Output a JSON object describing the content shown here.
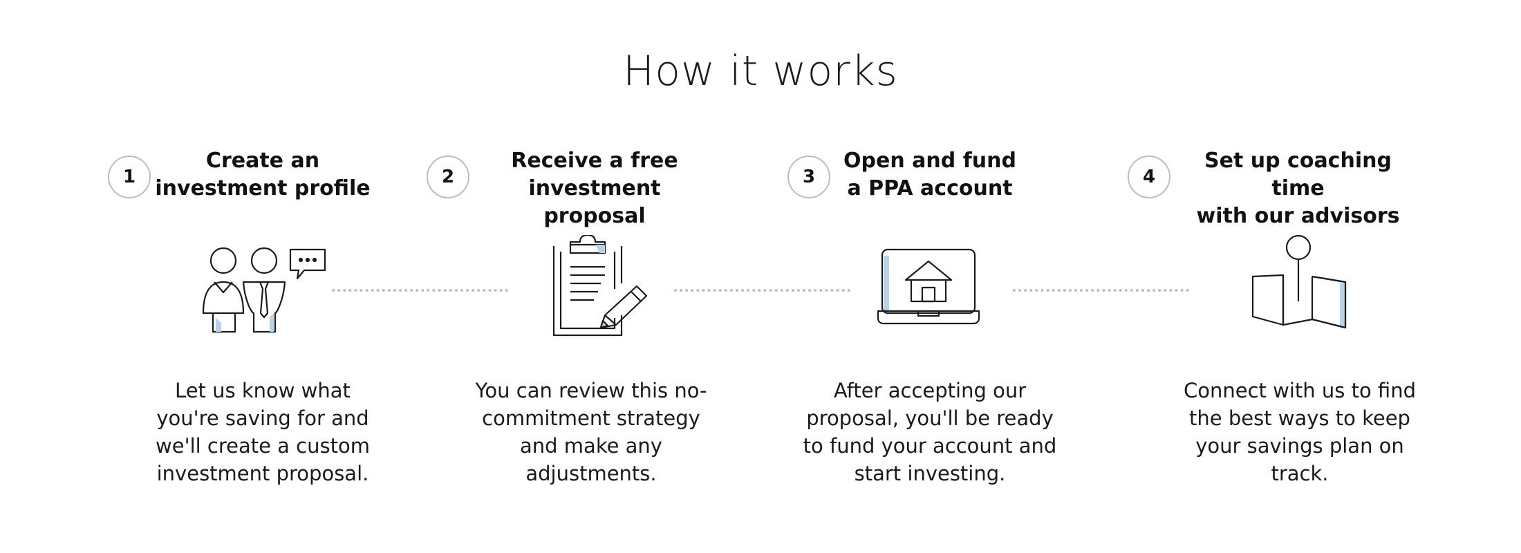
{
  "header": {
    "title": "How it works"
  },
  "steps": [
    {
      "number": "1",
      "title": "Create an\ninvestment profile",
      "description": "Let us know what you're saving for and we'll create a custom investment proposal.",
      "icon": "people-conversation-icon"
    },
    {
      "number": "2",
      "title": "Receive a free\ninvestment proposal",
      "description": "You can review this no-commitment strategy and make any adjustments.",
      "icon": "clipboard-pencil-icon"
    },
    {
      "number": "3",
      "title": "Open and fund\na PPA account",
      "description": "After accepting our proposal, you'll be ready to fund your account and start investing.",
      "icon": "laptop-house-icon"
    },
    {
      "number": "4",
      "title": "Set up coaching time\nwith our advisors",
      "description": "Connect with us to find the best ways to keep your savings plan on track.",
      "icon": "map-pin-icon"
    }
  ],
  "colors": {
    "accent": "#b8d3e8",
    "stroke": "#1a1a1a",
    "divider": "#bdbdbd"
  }
}
